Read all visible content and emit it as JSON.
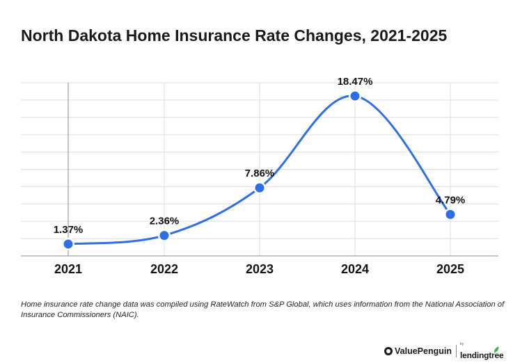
{
  "title": "North Dakota Home Insurance Rate Changes, 2021-2025",
  "caption": "Home insurance rate change data was compiled using RateWatch from S&P Global, which uses information from the National Association of Insurance Commissioners (NAIC).",
  "brand": {
    "valuepenguin": "ValuePenguin",
    "lendingtree_by": "by",
    "lendingtree": "lendingtree"
  },
  "colors": {
    "line": "#2f6fe4",
    "grid": "#dedede",
    "axis": "#8a8a8a",
    "text": "#111111",
    "brand_green": "#3bb54a"
  },
  "chart_data": {
    "type": "line",
    "title": "North Dakota Home Insurance Rate Changes, 2021-2025",
    "xlabel": "",
    "ylabel": "",
    "categories": [
      "2021",
      "2022",
      "2023",
      "2024",
      "2025"
    ],
    "values": [
      1.37,
      2.36,
      7.86,
      18.47,
      4.79
    ],
    "data_labels": [
      "1.37%",
      "2.36%",
      "7.86%",
      "18.47%",
      "4.79%"
    ],
    "ylim": [
      0,
      20
    ],
    "grid": true,
    "legend": "none",
    "smooth": true
  }
}
